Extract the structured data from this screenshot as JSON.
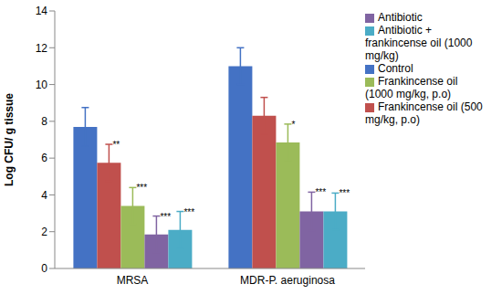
{
  "chart_data": {
    "type": "bar",
    "y_label": "Log CFU/ g tissue",
    "categories": [
      "MRSA",
      "MDR-P. aeruginosa"
    ],
    "ylim": [
      0,
      14
    ],
    "yticks": [
      0,
      2,
      4,
      6,
      8,
      10,
      12,
      14
    ],
    "grid": false,
    "legend": "right",
    "series": [
      {
        "name": "Control",
        "color": "#4472c4",
        "values": [
          7.7,
          11.0
        ],
        "errors": [
          1.05,
          1.0
        ],
        "annotations": [
          null,
          null
        ]
      },
      {
        "name": "Frankincense oil (500 mg/kg, p.o)",
        "color": "#c0504d",
        "values": [
          5.75,
          8.3
        ],
        "errors": [
          1.0,
          1.0
        ],
        "annotations": [
          "**",
          null
        ]
      },
      {
        "name": "Frankincense oil (1000 mg/kg, p.o)",
        "color": "#9bbb59",
        "values": [
          3.4,
          6.85
        ],
        "errors": [
          1.0,
          1.0
        ],
        "annotations": [
          "***",
          "*"
        ]
      },
      {
        "name": "Antibiotic",
        "color": "#8064a2",
        "values": [
          1.85,
          3.1
        ],
        "errors": [
          1.0,
          1.05
        ],
        "annotations": [
          "***",
          "***"
        ]
      },
      {
        "name": "Antibiotic + frankincense oil (1000 mg/kg)",
        "color": "#4bacc6",
        "values": [
          2.1,
          3.1
        ],
        "errors": [
          1.0,
          1.0
        ],
        "annotations": [
          "***",
          "***"
        ]
      }
    ]
  }
}
